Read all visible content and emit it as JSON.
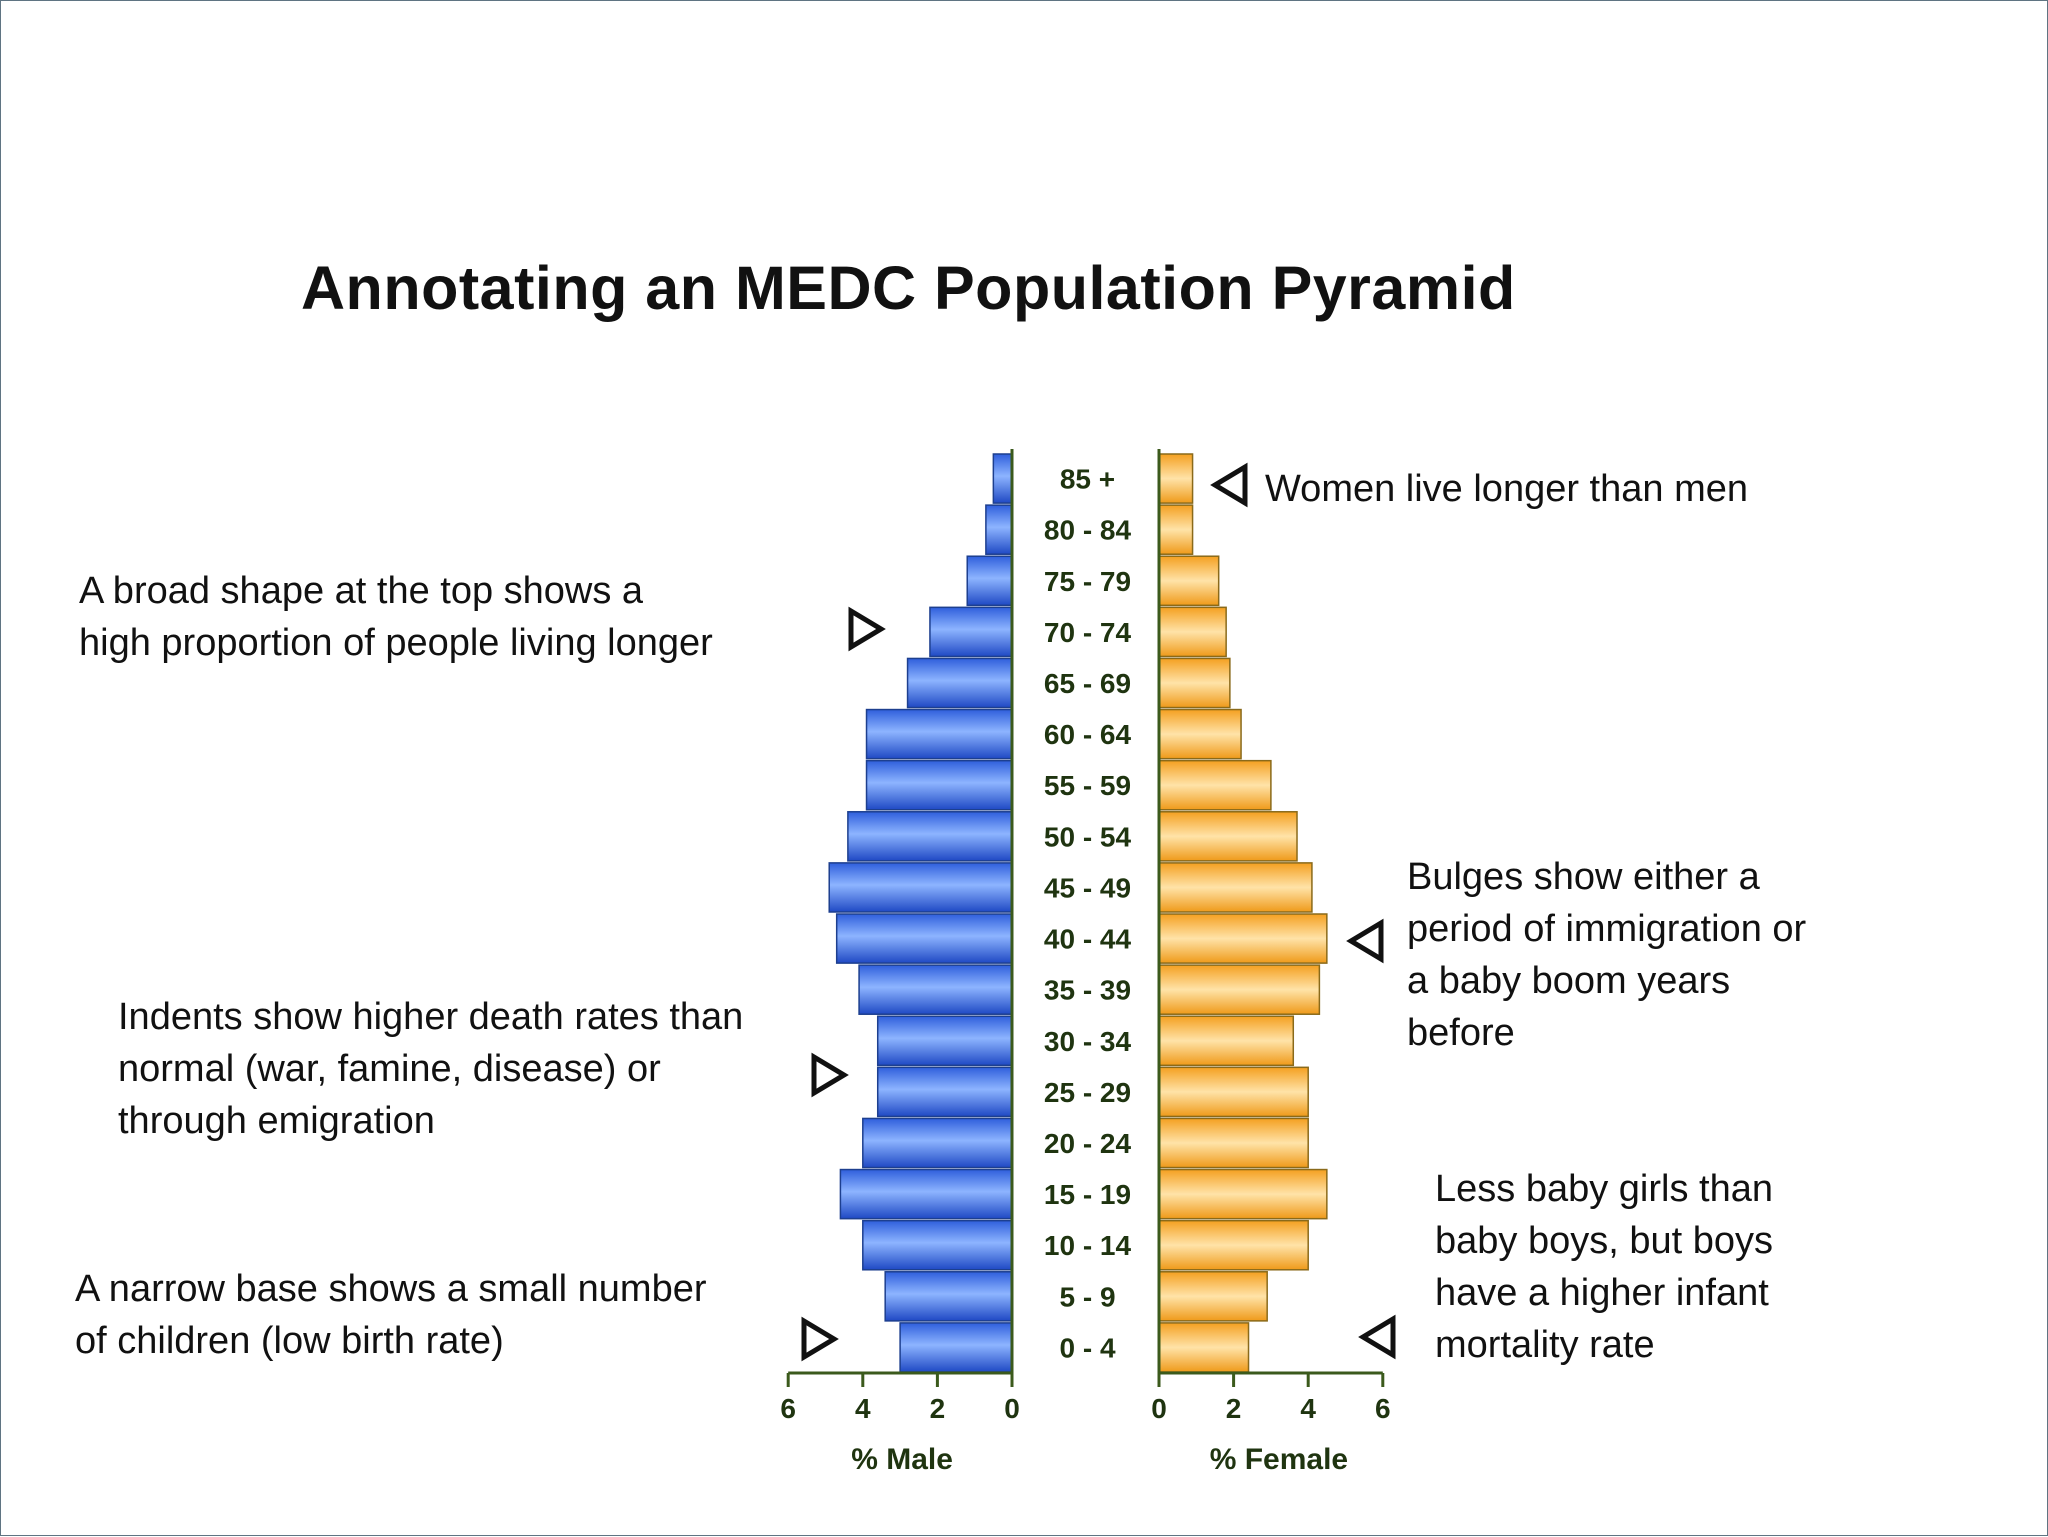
{
  "title": "Annotating an MEDC Population Pyramid",
  "annotations": {
    "top_left": [
      "A broad shape at the top shows a",
      "high proportion of people living longer"
    ],
    "indents": [
      "Indents show higher death rates than",
      "normal (war, famine, disease) or",
      "through emigration"
    ],
    "base": [
      "A narrow base shows a small number",
      "of children (low birth rate)"
    ],
    "women": [
      "Women live longer than men"
    ],
    "bulges": [
      "Bulges show either a",
      "period of immigration or",
      "a baby boom years",
      "before"
    ],
    "baby_girls": [
      "Less baby girls than",
      "baby boys, but boys",
      "have a higher infant",
      "mortality rate"
    ]
  },
  "colors": {
    "male": "#3f6fe6",
    "female": "#f6aa2e",
    "axis": "#3b5a1c",
    "arrow": "#111111"
  },
  "chart_data": {
    "type": "bar",
    "orientation": "horizontal",
    "categories": [
      "0 - 4",
      "5 - 9",
      "10 - 14",
      "15 - 19",
      "20 - 24",
      "25 - 29",
      "30 - 34",
      "35 - 39",
      "40 - 44",
      "45 - 49",
      "50 - 54",
      "55 - 59",
      "60 - 64",
      "65 - 69",
      "70 - 74",
      "75 - 79",
      "80 - 84",
      "85 +"
    ],
    "series": [
      {
        "name": "% Male",
        "values": [
          3.0,
          3.4,
          4.0,
          4.6,
          4.0,
          3.6,
          3.6,
          4.1,
          4.7,
          4.9,
          4.4,
          3.9,
          3.9,
          2.8,
          2.2,
          1.2,
          0.7,
          0.5
        ]
      },
      {
        "name": "% Female",
        "values": [
          2.4,
          2.9,
          4.0,
          4.5,
          4.0,
          4.0,
          3.6,
          4.3,
          4.5,
          4.1,
          3.7,
          3.0,
          2.2,
          1.9,
          1.8,
          1.6,
          0.9,
          0.9
        ]
      }
    ],
    "xlim": [
      0,
      6
    ],
    "xticks": [
      0,
      2,
      4,
      6
    ],
    "male_xticks": [
      "6",
      "4",
      "2",
      "0"
    ],
    "female_xticks": [
      "0",
      "2",
      "4",
      "6"
    ],
    "male_xlabel": "% Male",
    "female_xlabel": "% Female",
    "grid": false
  }
}
